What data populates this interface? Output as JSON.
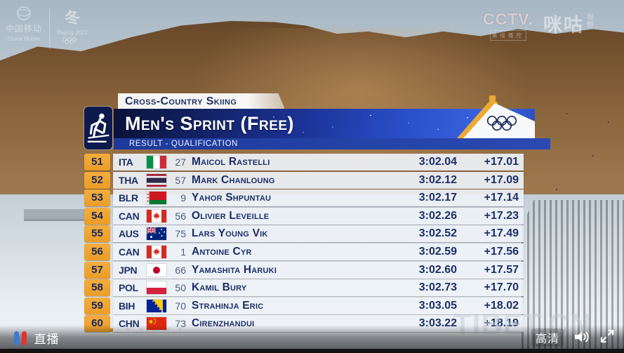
{
  "header": {
    "sport_label": "Cross-Country Skiing",
    "event_title": "Men's Sprint (Free)",
    "phase_label": "RESULT - QUALIFICATION"
  },
  "results": [
    {
      "rank": "51",
      "noc": "ITA",
      "bib": "27",
      "name": "Maicol Rastelli",
      "time": "3:02.04",
      "diff": "+17.01"
    },
    {
      "rank": "52",
      "noc": "THA",
      "bib": "57",
      "name": "Mark Chanloung",
      "time": "3:02.12",
      "diff": "+17.09"
    },
    {
      "rank": "53",
      "noc": "BLR",
      "bib": "9",
      "name": "Yahor Shpuntau",
      "time": "3:02.17",
      "diff": "+17.14"
    },
    {
      "rank": "54",
      "noc": "CAN",
      "bib": "56",
      "name": "Olivier Leveille",
      "time": "3:02.26",
      "diff": "+17.23"
    },
    {
      "rank": "55",
      "noc": "AUS",
      "bib": "75",
      "name": "Lars Young Vik",
      "time": "3:02.52",
      "diff": "+17.49"
    },
    {
      "rank": "56",
      "noc": "CAN",
      "bib": "1",
      "name": "Antoine Cyr",
      "time": "3:02.59",
      "diff": "+17.56"
    },
    {
      "rank": "57",
      "noc": "JPN",
      "bib": "66",
      "name": "Yamashita Haruki",
      "time": "3:02.60",
      "diff": "+17.57"
    },
    {
      "rank": "58",
      "noc": "POL",
      "bib": "50",
      "name": "Kamil Bury",
      "time": "3:02.73",
      "diff": "+17.70"
    },
    {
      "rank": "59",
      "noc": "BIH",
      "bib": "70",
      "name": "Strahinja Eric",
      "time": "3:03.05",
      "diff": "+18.02"
    },
    {
      "rank": "60",
      "noc": "CHN",
      "bib": "73",
      "name": "Cirenzhandui",
      "time": "3:03.22",
      "diff": "+18.19"
    }
  ],
  "watermarks": {
    "carrier": {
      "cn": "中国移动",
      "en": "China Mobile"
    },
    "games": {
      "emblem": "冬",
      "label": "Beijing 2022"
    },
    "channel": {
      "name": "CCTV.",
      "sub": "集成播控"
    },
    "platform": {
      "name": "咪咕",
      "sub_top": "视",
      "sub_bottom": "频"
    },
    "site": "TIBET.CN"
  },
  "player": {
    "live_label": "直播",
    "quality_label": "高清"
  },
  "colors": {
    "rank_badge": "#EFA63A",
    "navy_text": "#1B2F66",
    "band_blue": "#1B3396",
    "subband_blue": "#1D3A9A"
  }
}
